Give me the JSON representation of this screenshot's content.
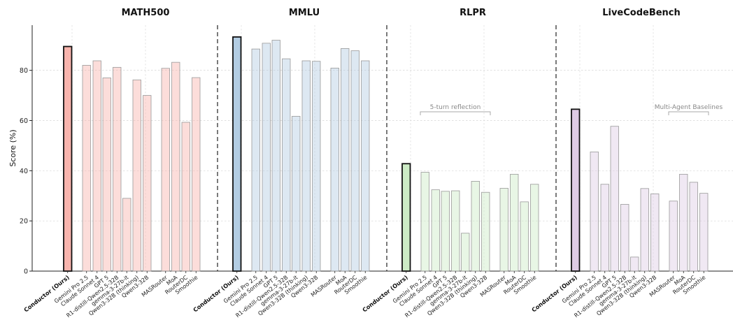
{
  "chart_data": {
    "type": "bar",
    "ylabel": "Score (%)",
    "ylim": [
      0,
      98
    ],
    "yticks": [
      0,
      20,
      40,
      60,
      80
    ],
    "grid": true,
    "categories": [
      "Conductor (Ours)",
      "Gemini Pro 2.5",
      "Claude Sonnet 4",
      "GPT 5",
      "R1-distill-Qwen2.5-32B",
      "gemma-3-27b-it",
      "Qwen3-32B (thinking)",
      "Qwen3-32B",
      "MASRouter",
      "MoA",
      "RouterDC",
      "Smoothie"
    ],
    "panels": [
      {
        "title": "MATH500",
        "values": [
          89.5,
          82.0,
          83.8,
          77.0,
          81.2,
          29.0,
          76.2,
          70.0,
          80.8,
          83.2,
          59.3,
          77.1
        ],
        "color": "#f8b4ad",
        "annotation": ""
      },
      {
        "title": "MMLU",
        "values": [
          93.3,
          88.5,
          90.8,
          92.0,
          84.6,
          61.7,
          83.8,
          83.6,
          80.9,
          88.7,
          87.8,
          83.8
        ],
        "color": "#b3cde3",
        "annotation": ""
      },
      {
        "title": "RLPR",
        "values": [
          42.8,
          39.4,
          32.4,
          31.8,
          32.0,
          15.1,
          35.8,
          31.4,
          33.0,
          38.6,
          27.6,
          34.6
        ],
        "color": "#ccebc5",
        "annotation": "5-turn reflection"
      },
      {
        "title": "LiveCodeBench",
        "values": [
          64.5,
          47.5,
          34.6,
          57.7,
          26.6,
          5.6,
          32.9,
          30.8,
          27.9,
          38.6,
          35.4,
          31.0
        ],
        "color": "#decbe4",
        "annotation": "Multi-Agent Baselines"
      }
    ]
  }
}
